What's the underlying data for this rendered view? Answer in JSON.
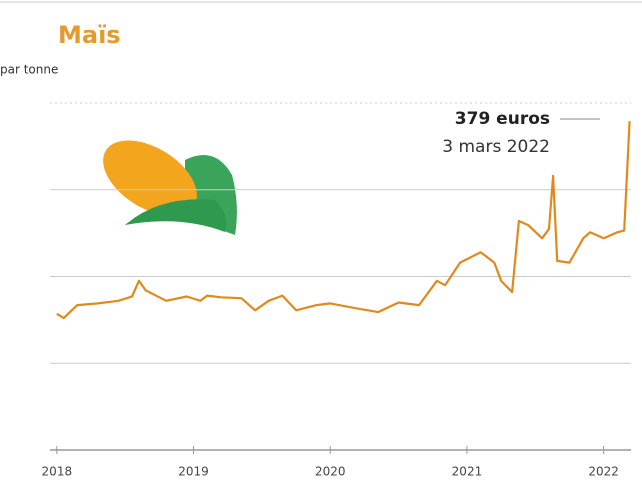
{
  "chart_data": {
    "type": "line",
    "title": "Maïs",
    "subtitle": "par tonne",
    "annotations": [
      {
        "text": "379 euros"
      },
      {
        "text": "3 mars 2022"
      }
    ],
    "x": [
      2018.0,
      2018.05,
      2018.15,
      2018.3,
      2018.45,
      2018.55,
      2018.6,
      2018.65,
      2018.8,
      2018.95,
      2019.05,
      2019.1,
      2019.2,
      2019.35,
      2019.45,
      2019.55,
      2019.65,
      2019.75,
      2019.9,
      2020.0,
      2020.2,
      2020.35,
      2020.5,
      2020.65,
      2020.78,
      2020.84,
      2020.95,
      2021.1,
      2021.2,
      2021.25,
      2021.33,
      2021.38,
      2021.45,
      2021.55,
      2021.6,
      2021.63,
      2021.66,
      2021.75,
      2021.85,
      2021.9,
      2022.0,
      2022.1,
      2022.15,
      2022.19
    ],
    "series": [
      {
        "name": "Maïs",
        "color": "#e08a1e",
        "values": [
          157,
          152,
          167,
          169,
          172,
          177,
          195,
          184,
          172,
          177,
          172,
          178,
          176,
          175,
          161,
          172,
          178,
          161,
          167,
          169,
          163,
          159,
          170,
          167,
          195,
          190,
          216,
          228,
          216,
          195,
          182,
          264,
          259,
          244,
          255,
          316,
          218,
          216,
          244,
          251,
          244,
          251,
          253,
          379
        ]
      }
    ],
    "xlim": [
      2017.95,
      2022.2
    ],
    "xticks": [
      2018,
      2019,
      2020,
      2021,
      2022
    ],
    "ylim": [
      0,
      400
    ],
    "yticks": [
      0,
      100,
      200,
      300,
      400
    ],
    "grid": true
  }
}
